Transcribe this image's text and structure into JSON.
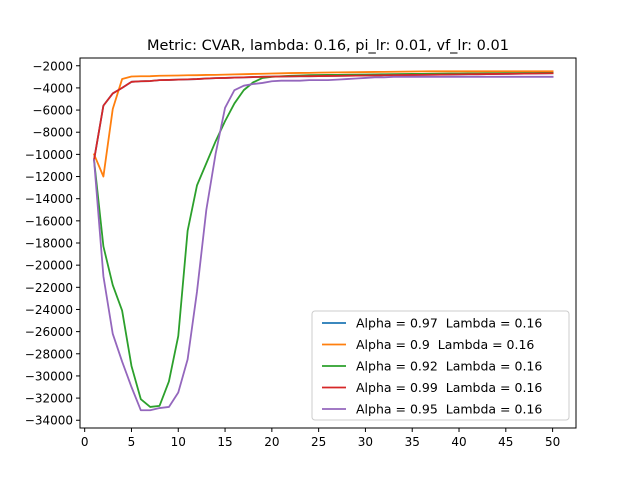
{
  "chart_data": {
    "type": "line",
    "title": "Metric: CVAR, lambda: 0.16, pi_lr: 0.01, vf_lr: 0.01",
    "xlabel": "",
    "ylabel": "",
    "xlim": [
      -0.5,
      52.5
    ],
    "ylim": [
      -34700,
      -1300
    ],
    "xticks": [
      0,
      5,
      10,
      15,
      20,
      25,
      30,
      35,
      40,
      45,
      50
    ],
    "yticks": [
      -34000,
      -32000,
      -30000,
      -28000,
      -26000,
      -24000,
      -22000,
      -20000,
      -18000,
      -16000,
      -14000,
      -12000,
      -10000,
      -8000,
      -6000,
      -4000,
      -2000
    ],
    "legend_position": "lower-right",
    "grid": false,
    "x": [
      1,
      2,
      3,
      4,
      5,
      6,
      7,
      8,
      9,
      10,
      11,
      12,
      13,
      14,
      15,
      16,
      17,
      18,
      19,
      20,
      21,
      22,
      23,
      24,
      25,
      26,
      27,
      28,
      29,
      30,
      31,
      32,
      33,
      34,
      35,
      36,
      37,
      38,
      39,
      40,
      41,
      42,
      43,
      44,
      45,
      46,
      47,
      48,
      49,
      50
    ],
    "series": [
      {
        "name": "Alpha = 0.97  Lambda = 0.16",
        "color": "#1f77b4",
        "values": [
          -10500,
          -5600,
          -4500,
          -4000,
          -3450,
          -3400,
          -3380,
          -3300,
          -3280,
          -3250,
          -3230,
          -3200,
          -3150,
          -3120,
          -3100,
          -3070,
          -3050,
          -3020,
          -3000,
          -2980,
          -2970,
          -2960,
          -2950,
          -2940,
          -2930,
          -2920,
          -2910,
          -2900,
          -2890,
          -2880,
          -2870,
          -2860,
          -2850,
          -2840,
          -2830,
          -2820,
          -2810,
          -2800,
          -2790,
          -2780,
          -2770,
          -2760,
          -2750,
          -2740,
          -2730,
          -2720,
          -2710,
          -2700,
          -2690,
          -2680
        ]
      },
      {
        "name": "Alpha = 0.9  Lambda = 0.16",
        "color": "#ff7f0e",
        "values": [
          -10000,
          -12000,
          -5900,
          -3200,
          -2970,
          -2950,
          -2940,
          -2900,
          -2890,
          -2880,
          -2860,
          -2850,
          -2830,
          -2820,
          -2800,
          -2780,
          -2760,
          -2740,
          -2720,
          -2700,
          -2680,
          -2660,
          -2650,
          -2640,
          -2620,
          -2610,
          -2600,
          -2590,
          -2580,
          -2570,
          -2560,
          -2550,
          -2540,
          -2530,
          -2520,
          -2510,
          -2500,
          -2500,
          -2500,
          -2500,
          -2500,
          -2500,
          -2500,
          -2500,
          -2500,
          -2500,
          -2500,
          -2500,
          -2500,
          -2500
        ]
      },
      {
        "name": "Alpha = 0.92  Lambda = 0.16",
        "color": "#2ca02c",
        "values": [
          -10500,
          -18300,
          -21800,
          -24100,
          -29100,
          -32100,
          -32800,
          -32700,
          -30500,
          -26400,
          -16900,
          -12800,
          -10800,
          -8800,
          -7000,
          -5400,
          -4200,
          -3500,
          -3100,
          -3000,
          -2950,
          -2900,
          -2880,
          -2850,
          -2840,
          -2830,
          -2820,
          -2810,
          -2800,
          -2790,
          -2780,
          -2770,
          -2760,
          -2750,
          -2740,
          -2730,
          -2720,
          -2710,
          -2700,
          -2700,
          -2690,
          -2690,
          -2680,
          -2680,
          -2670,
          -2670,
          -2660,
          -2660,
          -2650,
          -2650
        ]
      },
      {
        "name": "Alpha = 0.99  Lambda = 0.16",
        "color": "#d62728",
        "values": [
          -10500,
          -5600,
          -4500,
          -4000,
          -3450,
          -3400,
          -3380,
          -3300,
          -3280,
          -3250,
          -3230,
          -3200,
          -3150,
          -3120,
          -3100,
          -3070,
          -3050,
          -3020,
          -3000,
          -2980,
          -2970,
          -2960,
          -2950,
          -2940,
          -2930,
          -2920,
          -2910,
          -2900,
          -2890,
          -2880,
          -2870,
          -2860,
          -2850,
          -2840,
          -2830,
          -2820,
          -2810,
          -2800,
          -2790,
          -2780,
          -2770,
          -2760,
          -2750,
          -2740,
          -2730,
          -2720,
          -2710,
          -2700,
          -2690,
          -2680
        ]
      },
      {
        "name": "Alpha = 0.95  Lambda = 0.16",
        "color": "#9467bd",
        "values": [
          -10500,
          -21000,
          -26200,
          -28700,
          -31000,
          -33100,
          -33100,
          -32900,
          -32800,
          -31500,
          -28500,
          -22400,
          -15000,
          -9900,
          -5800,
          -4200,
          -3800,
          -3650,
          -3550,
          -3400,
          -3350,
          -3350,
          -3350,
          -3300,
          -3300,
          -3300,
          -3250,
          -3200,
          -3150,
          -3100,
          -3050,
          -3050,
          -3000,
          -3000,
          -3000,
          -3000,
          -3000,
          -3000,
          -3000,
          -3000,
          -3000,
          -3000,
          -3000,
          -3000,
          -3000,
          -3000,
          -3000,
          -3000,
          -3000,
          -3000
        ]
      }
    ]
  }
}
